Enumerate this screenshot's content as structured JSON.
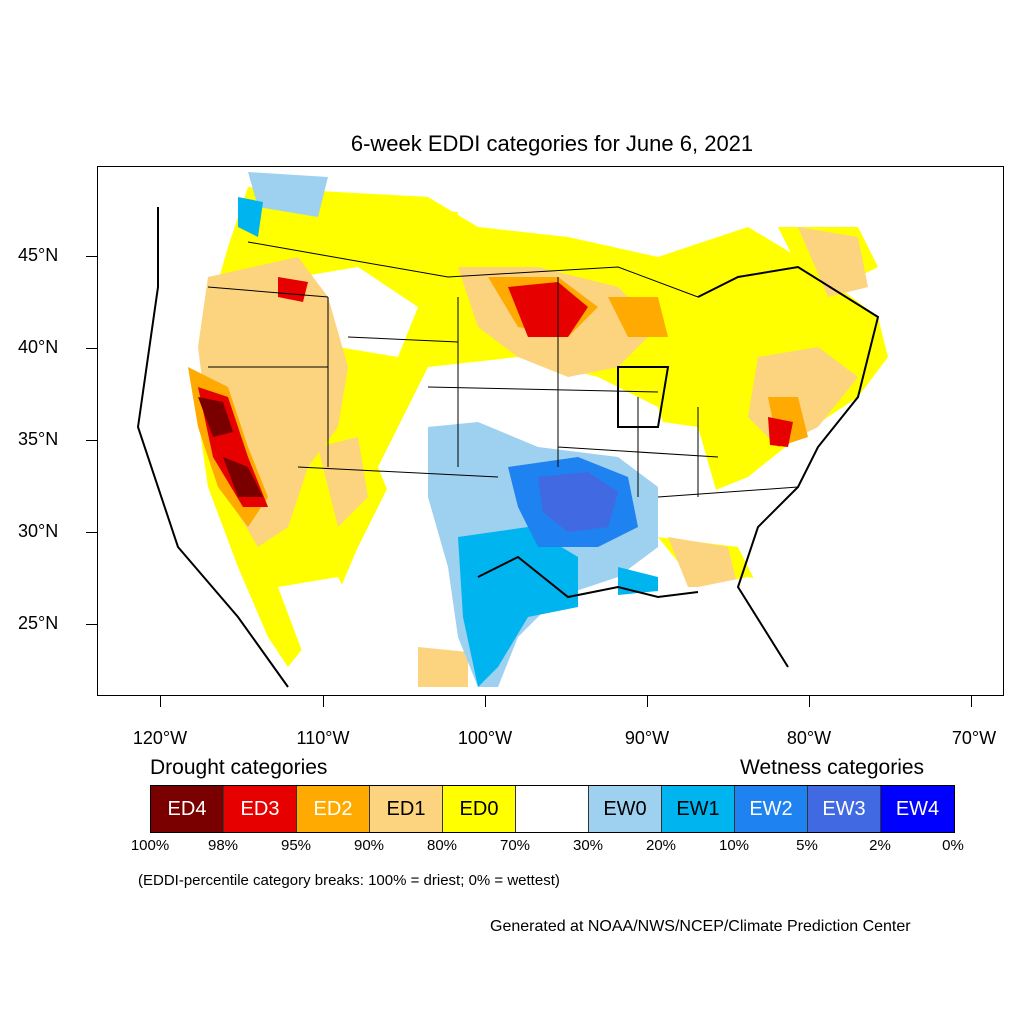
{
  "title": "6-week EDDI categories for June 6, 2021",
  "lat_labels": [
    "45°N",
    "40°N",
    "35°N",
    "30°N",
    "25°N"
  ],
  "lon_labels": [
    "120°W",
    "110°W",
    "100°W",
    "90°W",
    "80°W",
    "70°W"
  ],
  "legend": {
    "drought_heading": "Drought categories",
    "wetness_heading": "Wetness categories",
    "categories": [
      {
        "label": "ED4",
        "color": "#7a0000",
        "text_color": "#ffffff"
      },
      {
        "label": "ED3",
        "color": "#e60000",
        "text_color": "#ffffff"
      },
      {
        "label": "ED2",
        "color": "#ffaa00",
        "text_color": "#ffffff"
      },
      {
        "label": "ED1",
        "color": "#fcd37f",
        "text_color": "#000000"
      },
      {
        "label": "ED0",
        "color": "#ffff00",
        "text_color": "#000000"
      },
      {
        "label": "",
        "color": "#ffffff",
        "text_color": "#000000"
      },
      {
        "label": "EW0",
        "color": "#9ed0f0",
        "text_color": "#000000"
      },
      {
        "label": "EW1",
        "color": "#00b4f0",
        "text_color": "#000000"
      },
      {
        "label": "EW2",
        "color": "#1e82f0",
        "text_color": "#ffffff"
      },
      {
        "label": "EW3",
        "color": "#4169e1",
        "text_color": "#ffffff"
      },
      {
        "label": "EW4",
        "color": "#0000ff",
        "text_color": "#ffffff"
      }
    ],
    "percentiles": [
      "100%",
      "98%",
      "95%",
      "90%",
      "80%",
      "70%",
      "30%",
      "20%",
      "10%",
      "5%",
      "2%",
      "0%"
    ]
  },
  "note": "(EDDI-percentile category breaks: 100% = driest; 0% = wettest)",
  "credit": "Generated at NOAA/NWS/NCEP/Climate Prediction Center"
}
